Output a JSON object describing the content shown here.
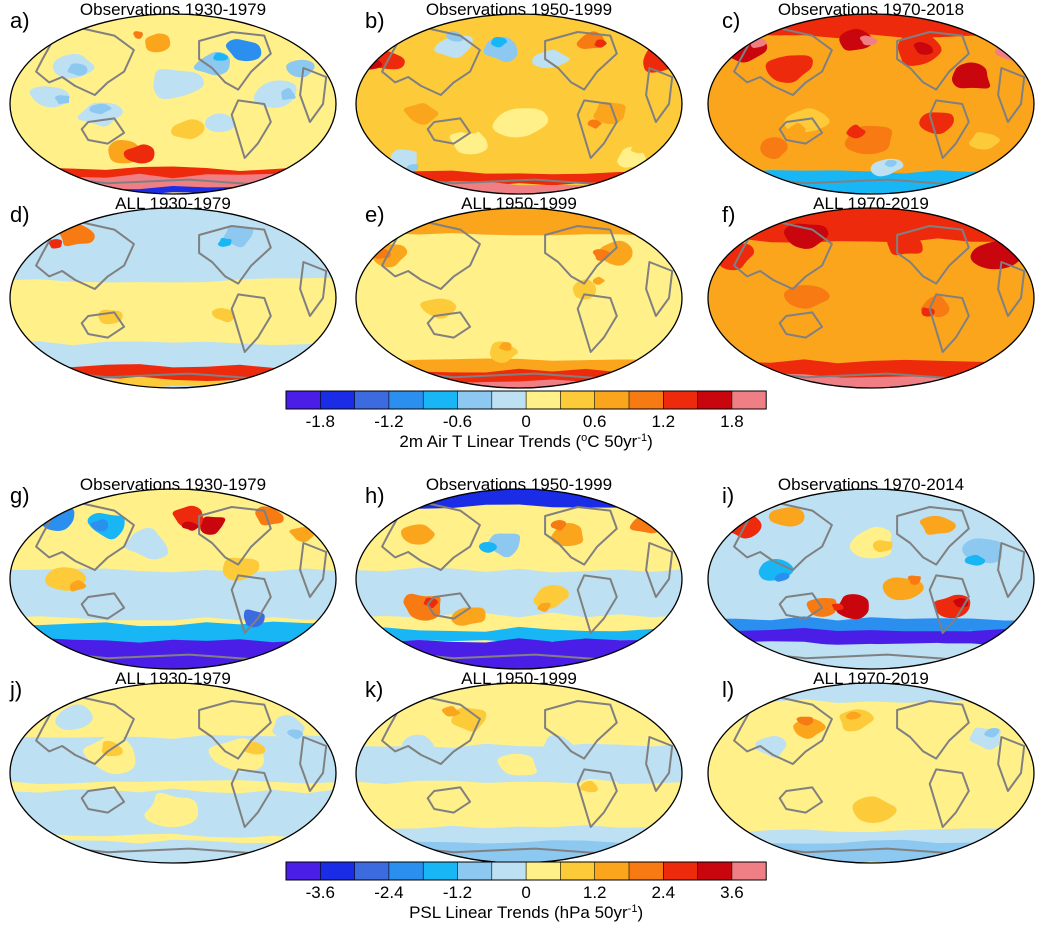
{
  "figure": {
    "panels": [
      {
        "label": "a)",
        "title": "Observations 1930-1979",
        "variable": "temperature",
        "pattern": "obs-1930"
      },
      {
        "label": "b)",
        "title": "Observations 1950-1999",
        "variable": "temperature",
        "pattern": "obs-1950"
      },
      {
        "label": "c)",
        "title": "Observations 1970-2018",
        "variable": "temperature",
        "pattern": "obs-1970"
      },
      {
        "label": "d)",
        "title": "ALL 1930-1979",
        "variable": "temperature",
        "pattern": "all-1930"
      },
      {
        "label": "e)",
        "title": "ALL 1950-1999",
        "variable": "temperature",
        "pattern": "all-1950"
      },
      {
        "label": "f)",
        "title": "ALL 1970-2019",
        "variable": "temperature",
        "pattern": "all-1970"
      },
      {
        "label": "g)",
        "title": "Observations 1930-1979",
        "variable": "psl",
        "pattern": "psl-obs-1930"
      },
      {
        "label": "h)",
        "title": "Observations 1950-1999",
        "variable": "psl",
        "pattern": "psl-obs-1950"
      },
      {
        "label": "i)",
        "title": "Observations 1970-2014",
        "variable": "psl",
        "pattern": "psl-obs-1970"
      },
      {
        "label": "j)",
        "title": "ALL 1930-1979",
        "variable": "psl",
        "pattern": "psl-all-1930"
      },
      {
        "label": "k)",
        "title": "ALL 1950-1999",
        "variable": "psl",
        "pattern": "psl-all-1950"
      },
      {
        "label": "l)",
        "title": "ALL 1970-2019",
        "variable": "psl",
        "pattern": "psl-all-1970"
      }
    ],
    "colorbars": [
      {
        "id": "temperature",
        "label_main": "2m Air T Linear Trends (",
        "label_sup1": "o",
        "label_mid": "C 50yr",
        "label_sup2": "-1",
        "label_end": ")",
        "ticks": [
          "-1.8",
          "-1.2",
          "-0.6",
          "0",
          "0.6",
          "1.2",
          "1.8"
        ]
      },
      {
        "id": "psl",
        "label_main": "PSL Linear Trends (hPa 50yr",
        "label_sup1": "",
        "label_mid": "",
        "label_sup2": "-1",
        "label_end": ")",
        "ticks": [
          "-3.6",
          "-2.4",
          "-1.2",
          "0",
          "1.2",
          "2.4",
          "3.6"
        ]
      }
    ],
    "palette": [
      "#4b1ee8",
      "#1b2ce6",
      "#3c6be0",
      "#2b8ff0",
      "#18b6f5",
      "#8cc8f0",
      "#bde0f2",
      "#fff08a",
      "#fdcb3a",
      "#fba51d",
      "#f77a13",
      "#ee2a0d",
      "#c9050d",
      "#ef7f85"
    ],
    "coastline_color": "#808080"
  }
}
